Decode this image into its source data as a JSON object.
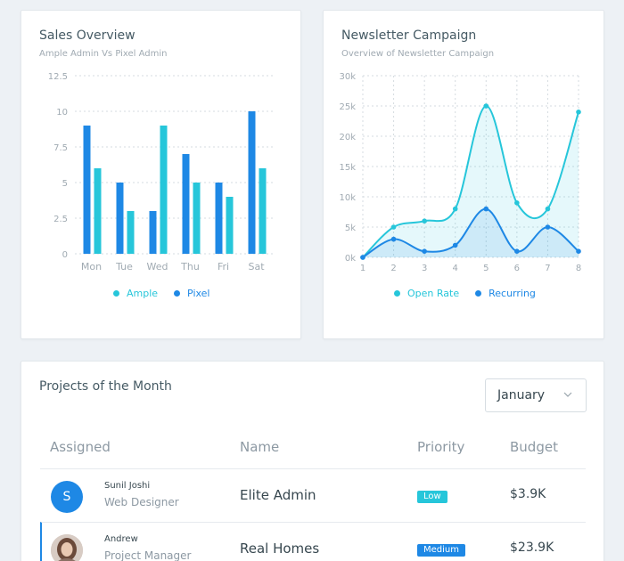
{
  "sales": {
    "title": "Sales Overview",
    "subtitle": "Ample Admin Vs Pixel Admin",
    "legend": [
      {
        "label": "Ample",
        "color": "#26c6da"
      },
      {
        "label": "Pixel",
        "color": "#1e88e5"
      }
    ]
  },
  "newsletter": {
    "title": "Newsletter Campaign",
    "subtitle": "Overview of Newsletter Campaign",
    "legend": [
      {
        "label": "Open Rate",
        "color": "#26c6da"
      },
      {
        "label": "Recurring",
        "color": "#1e88e5"
      }
    ]
  },
  "chart_data": [
    {
      "type": "bar",
      "title": "Sales Overview",
      "subtitle": "Ample Admin Vs Pixel Admin",
      "categories": [
        "Mon",
        "Tue",
        "Wed",
        "Thu",
        "Fri",
        "Sat"
      ],
      "series": [
        {
          "name": "Pixel",
          "color": "#1e88e5",
          "values": [
            9,
            5,
            3,
            7,
            5,
            10
          ]
        },
        {
          "name": "Ample",
          "color": "#26c6da",
          "values": [
            6,
            3,
            9,
            5,
            4,
            6
          ]
        }
      ],
      "yticks": [
        "0",
        "2.5",
        "5",
        "7.5",
        "10",
        "12.5"
      ],
      "ylim": [
        0,
        12.5
      ],
      "grid": "horizontal dotted",
      "legend_position": "bottom"
    },
    {
      "type": "area",
      "title": "Newsletter Campaign",
      "subtitle": "Overview of Newsletter Campaign",
      "x": [
        1,
        2,
        3,
        4,
        5,
        6,
        7,
        8
      ],
      "series": [
        {
          "name": "Open Rate",
          "color": "#26c6da",
          "values": [
            0,
            5000,
            6000,
            8000,
            25000,
            9000,
            8000,
            24000
          ]
        },
        {
          "name": "Recurring",
          "color": "#1e88e5",
          "values": [
            0,
            3000,
            1000,
            2000,
            8000,
            1000,
            5000,
            1000
          ]
        }
      ],
      "xticks": [
        "1",
        "2",
        "3",
        "4",
        "5",
        "6",
        "7",
        "8"
      ],
      "yticks": [
        "0k",
        "5k",
        "10k",
        "15k",
        "20k",
        "25k",
        "30k"
      ],
      "ylim": [
        0,
        30000
      ],
      "grid": "dotted both",
      "smooth": true,
      "legend_position": "bottom"
    }
  ],
  "projects": {
    "title": "Projects of the Month",
    "month_selected": "January",
    "columns": [
      "Assigned",
      "Name",
      "Priority",
      "Budget"
    ],
    "rows": [
      {
        "initial": "S",
        "avatar_color": "#1e88e5",
        "person": "Sunil Joshi",
        "role": "Web Designer",
        "project": "Elite Admin",
        "priority": "Low",
        "priority_color": "#26c6da",
        "budget": "$3.9K"
      },
      {
        "initial": "",
        "avatar_color": "#9e8f87",
        "person": "Andrew",
        "role": "Project Manager",
        "project": "Real Homes",
        "priority": "Medium",
        "priority_color": "#1e88e5",
        "budget": "$23.9K"
      }
    ]
  }
}
